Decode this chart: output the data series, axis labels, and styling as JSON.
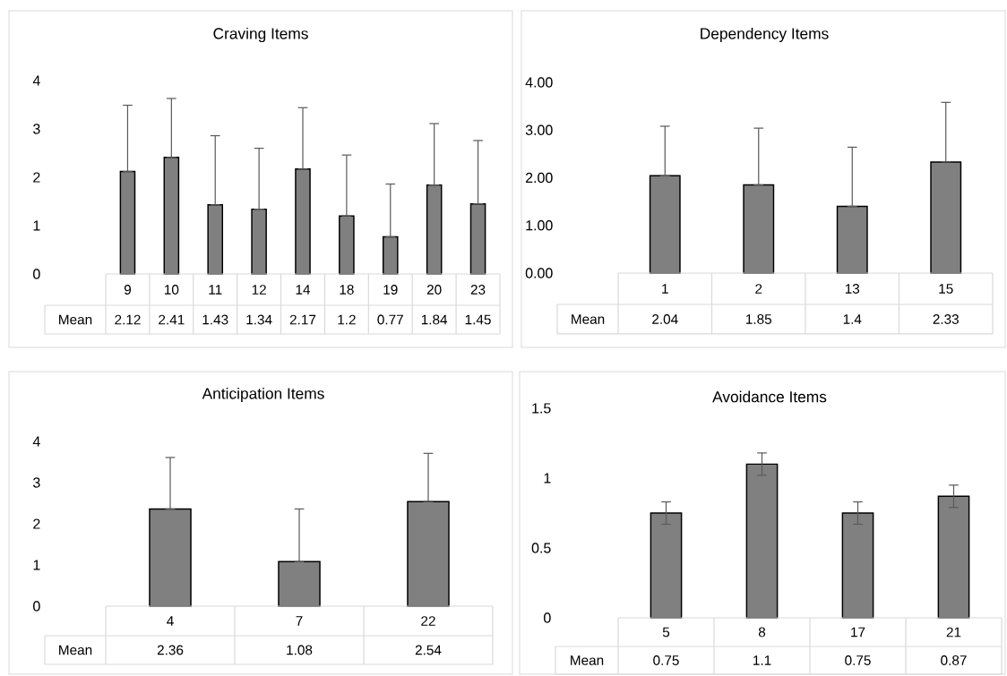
{
  "chart_data": [
    {
      "type": "bar",
      "title": "Craving Items",
      "categories": [
        "9",
        "10",
        "11",
        "12",
        "14",
        "18",
        "19",
        "20",
        "23"
      ],
      "series": [
        {
          "name": "Mean",
          "color": "#808080",
          "values": [
            2.12,
            2.41,
            1.43,
            1.34,
            2.17,
            1.2,
            0.77,
            1.84,
            1.45
          ],
          "errors": [
            [
              2.12,
              3.49
            ],
            [
              2.41,
              3.63
            ],
            [
              1.43,
              2.86
            ],
            [
              1.34,
              2.6
            ],
            [
              2.17,
              3.44
            ],
            [
              1.2,
              2.46
            ],
            [
              0.77,
              1.86
            ],
            [
              1.84,
              3.11
            ],
            [
              1.45,
              2.76
            ]
          ]
        }
      ],
      "ylim": [
        0,
        4
      ],
      "yticks": [
        0,
        1,
        2,
        3,
        4
      ],
      "data_labels": true
    },
    {
      "type": "bar",
      "title": "Dependency Items",
      "categories": [
        "1",
        "2",
        "13",
        "15"
      ],
      "series": [
        {
          "name": "Mean",
          "color": "#808080",
          "values": [
            2.04,
            1.85,
            1.4,
            2.33
          ],
          "errors": [
            [
              2.04,
              3.08
            ],
            [
              1.85,
              3.04
            ],
            [
              1.4,
              2.64
            ],
            [
              2.33,
              3.58
            ]
          ]
        }
      ],
      "ylim": [
        0,
        4
      ],
      "yticks": [
        {
          "value": 0,
          "label": "0.00"
        },
        {
          "value": 1,
          "label": "1.00"
        },
        {
          "value": 2,
          "label": "2.00"
        },
        {
          "value": 3,
          "label": "3.00"
        },
        {
          "value": 4,
          "label": "4.00"
        }
      ],
      "data_labels": true
    },
    {
      "type": "bar",
      "title": "Anticipation Items",
      "categories": [
        "4",
        "7",
        "22"
      ],
      "series": [
        {
          "name": "Mean",
          "color": "#808080",
          "values": [
            2.36,
            1.08,
            2.54
          ],
          "errors": [
            [
              2.36,
              3.61
            ],
            [
              1.08,
              2.36
            ],
            [
              2.54,
              3.71
            ]
          ]
        }
      ],
      "ylim": [
        0,
        4
      ],
      "yticks": [
        0,
        1,
        2,
        3,
        4
      ],
      "data_labels": true
    },
    {
      "type": "bar",
      "title": "Avoidance Items",
      "categories": [
        "5",
        "8",
        "17",
        "21"
      ],
      "series": [
        {
          "name": "Mean",
          "color": "#808080",
          "values": [
            0.75,
            1.1,
            0.75,
            0.87
          ],
          "errors": [
            0.08,
            0.08,
            0.08,
            0.08
          ]
        }
      ],
      "ylim": [
        0,
        1.5
      ],
      "yticks": [
        0,
        0.5,
        1,
        1.5
      ],
      "data_labels": true
    }
  ]
}
